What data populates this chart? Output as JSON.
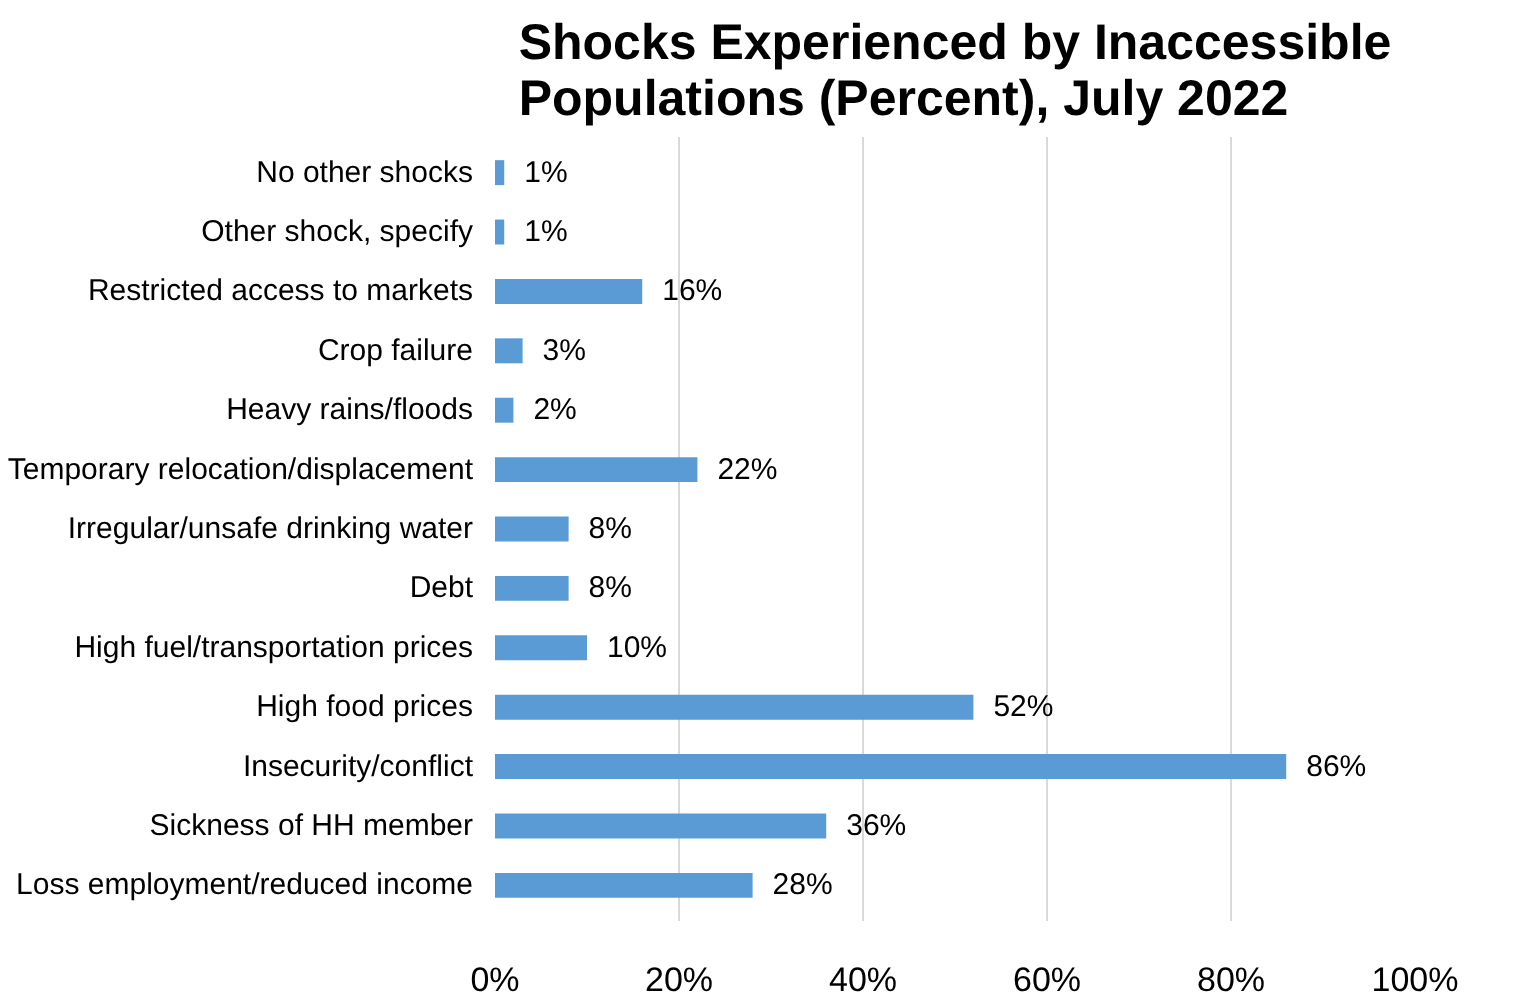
{
  "chart_data": {
    "type": "bar",
    "orientation": "horizontal",
    "title": "Shocks Experienced by Inaccessible Populations (Percent), July 2022",
    "categories": [
      "No other shocks",
      "Other shock, specify",
      "Restricted access to markets",
      "Crop failure",
      "Heavy rains/floods",
      "Temporary relocation/displacement",
      "Irregular/unsafe drinking water",
      "Debt",
      "High fuel/transportation prices",
      "High food prices",
      "Insecurity/conflict",
      "Sickness of HH member",
      "Loss employment/reduced income"
    ],
    "values": [
      1,
      1,
      16,
      3,
      2,
      22,
      8,
      8,
      10,
      52,
      86,
      36,
      28
    ],
    "value_labels": [
      "1%",
      "1%",
      "16%",
      "3%",
      "2%",
      "22%",
      "8%",
      "8%",
      "10%",
      "52%",
      "86%",
      "36%",
      "28%"
    ],
    "color": "#5b9bd5",
    "xlim": [
      0,
      100
    ],
    "xticks": [
      {
        "value": 0,
        "label": "0%"
      },
      {
        "value": 20,
        "label": "20%"
      },
      {
        "value": 40,
        "label": "40%"
      },
      {
        "value": 60,
        "label": "60%"
      },
      {
        "value": 80,
        "label": "80%"
      },
      {
        "value": 100,
        "label": "100%"
      }
    ],
    "grid": "x"
  }
}
